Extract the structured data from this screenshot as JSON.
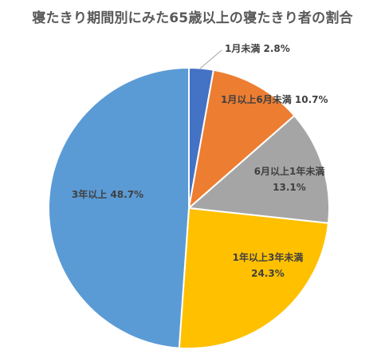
{
  "chart_data": {
    "type": "pie",
    "title": "寝たきり期間別にみた65歳以上の寝たきり者の割合",
    "slices": [
      {
        "label": "1月未満",
        "value": 2.8,
        "value_text": "2.8%",
        "color": "#4472C4"
      },
      {
        "label": "1月以上6月未満",
        "value": 10.7,
        "value_text": "10.7%",
        "color": "#ED7D31"
      },
      {
        "label": "6月以上1年未満",
        "value": 13.1,
        "value_text": "13.1%",
        "color": "#A5A5A5"
      },
      {
        "label": "1年以上3年未満",
        "value": 24.3,
        "value_text": "24.3%",
        "color": "#FFC000"
      },
      {
        "label": "3年以上",
        "value": 48.7,
        "value_text": "48.7%",
        "color": "#5B9BD5"
      }
    ],
    "start_angle_deg": 0,
    "direction": "clockwise",
    "legend": "none"
  }
}
